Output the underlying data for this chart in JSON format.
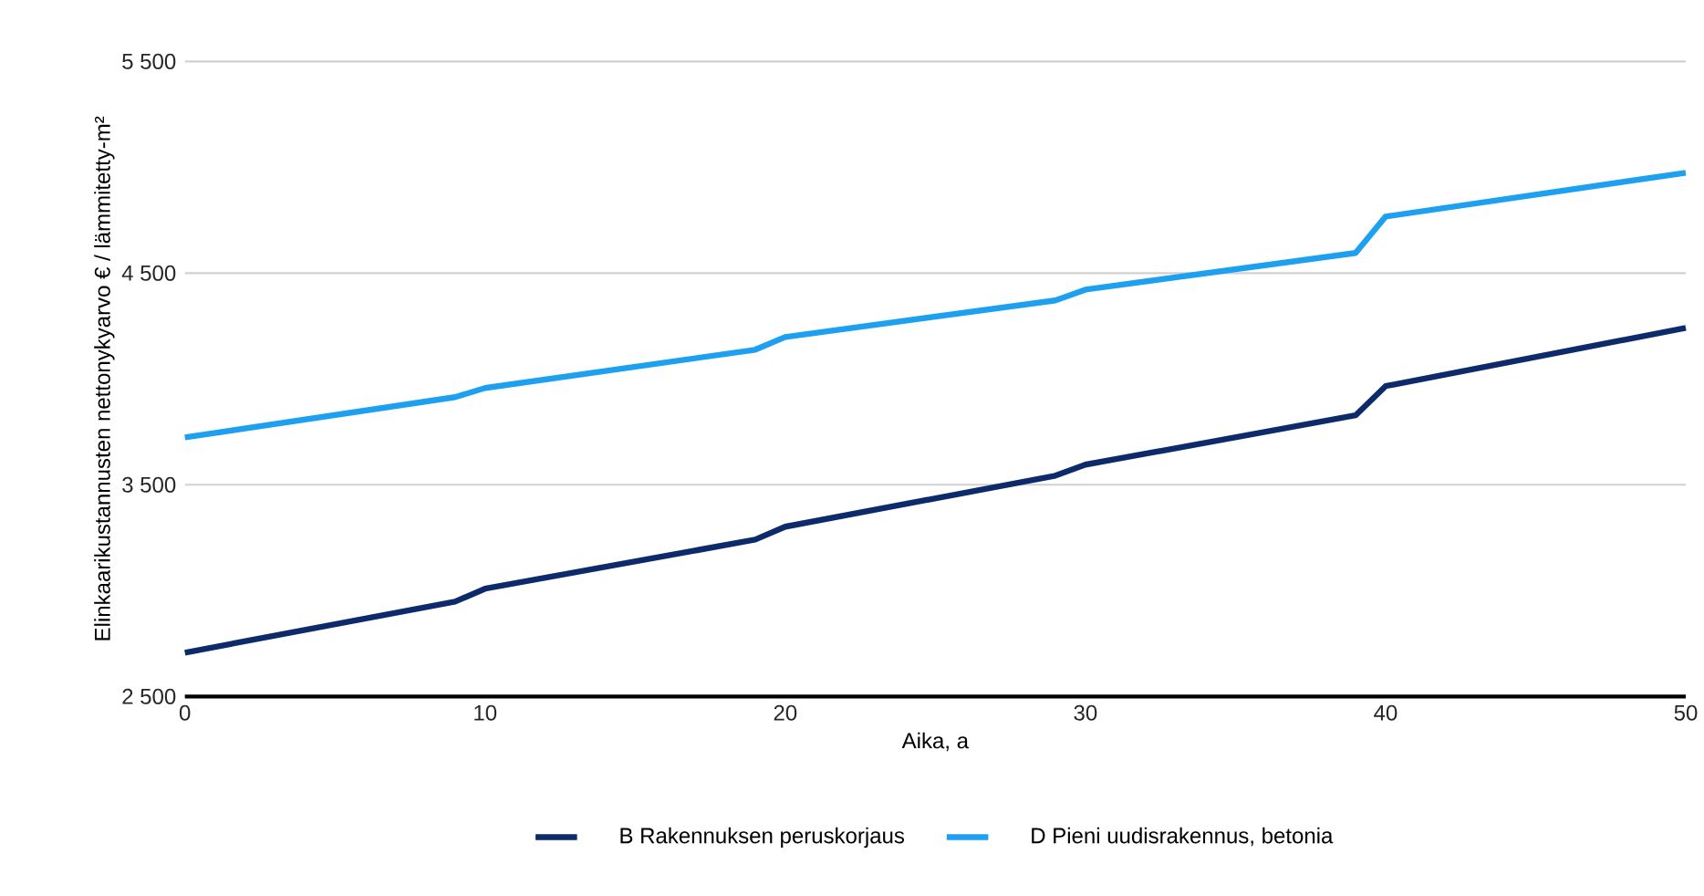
{
  "chart_data": {
    "type": "line",
    "xlabel": "Aika, a",
    "ylabel": "Elinkaarikustannusten nettonykyarvo € / lämmitetty-m²",
    "x": [
      0,
      9,
      10,
      19,
      20,
      29,
      30,
      39,
      40,
      50
    ],
    "series": [
      {
        "name": "B Rakennuksen peruskorjaus",
        "color": "#0d2a6b",
        "values": [
          2707,
          2948,
          3009,
          3241,
          3302,
          3543,
          3595,
          3828,
          3966,
          4241
        ]
      },
      {
        "name": "D Pieni uudisrakennus, betonia",
        "color": "#1ea0f0",
        "values": [
          3724,
          3914,
          3957,
          4138,
          4198,
          4371,
          4422,
          4595,
          4767,
          4974
        ]
      }
    ],
    "xlim": [
      0,
      50
    ],
    "ylim": [
      2500,
      5500
    ],
    "xticks": [
      0,
      10,
      20,
      30,
      40,
      50
    ],
    "yticks": [
      {
        "value": 2500,
        "label": "2 500"
      },
      {
        "value": 3500,
        "label": "3 500"
      },
      {
        "value": 4500,
        "label": "4 500"
      },
      {
        "value": 5500,
        "label": "5 500"
      }
    ],
    "grid": "y",
    "legend": "bottom",
    "marker": "none",
    "line_style": "solid"
  }
}
